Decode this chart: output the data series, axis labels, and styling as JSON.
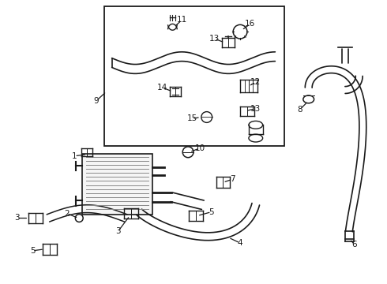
{
  "background_color": "#ffffff",
  "fig_width": 4.9,
  "fig_height": 3.6,
  "dpi": 100
}
